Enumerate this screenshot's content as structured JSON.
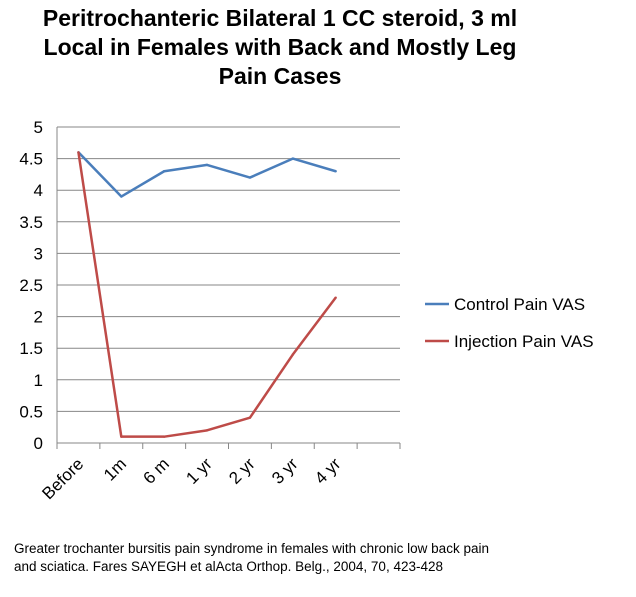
{
  "chart_data": {
    "type": "line",
    "title_lines": [
      "Peritrochanteric Bilateral 1 CC steroid, 3 ml",
      "Local in Females with  Back and Mostly Leg",
      "Pain Cases"
    ],
    "categories": [
      "Before",
      "1m",
      "6 m",
      "1 yr",
      "2 yr",
      "3 yr",
      "4 yr"
    ],
    "series": [
      {
        "name": "Control Pain VAS",
        "color": "#4a7ebb",
        "values": [
          4.6,
          3.9,
          4.3,
          4.4,
          4.2,
          4.5,
          4.3
        ]
      },
      {
        "name": "Injection Pain VAS",
        "color": "#be4b48",
        "values": [
          4.6,
          0.1,
          0.1,
          0.2,
          0.4,
          1.4,
          2.3
        ]
      }
    ],
    "ylim": [
      0,
      5
    ],
    "yticks": [
      "0",
      "0.5",
      "1",
      "1.5",
      "2",
      "2.5",
      "3",
      "3.5",
      "4",
      "4.5",
      "5"
    ],
    "grid": true,
    "legend": "right"
  },
  "caption_lines": [
    "Greater trochanter bursitis pain syndrome in females with chronic low back pain",
    "and sciatica. Fares SAYEGH et alActa Orthop. Belg., 2004, 70, 423-428"
  ]
}
